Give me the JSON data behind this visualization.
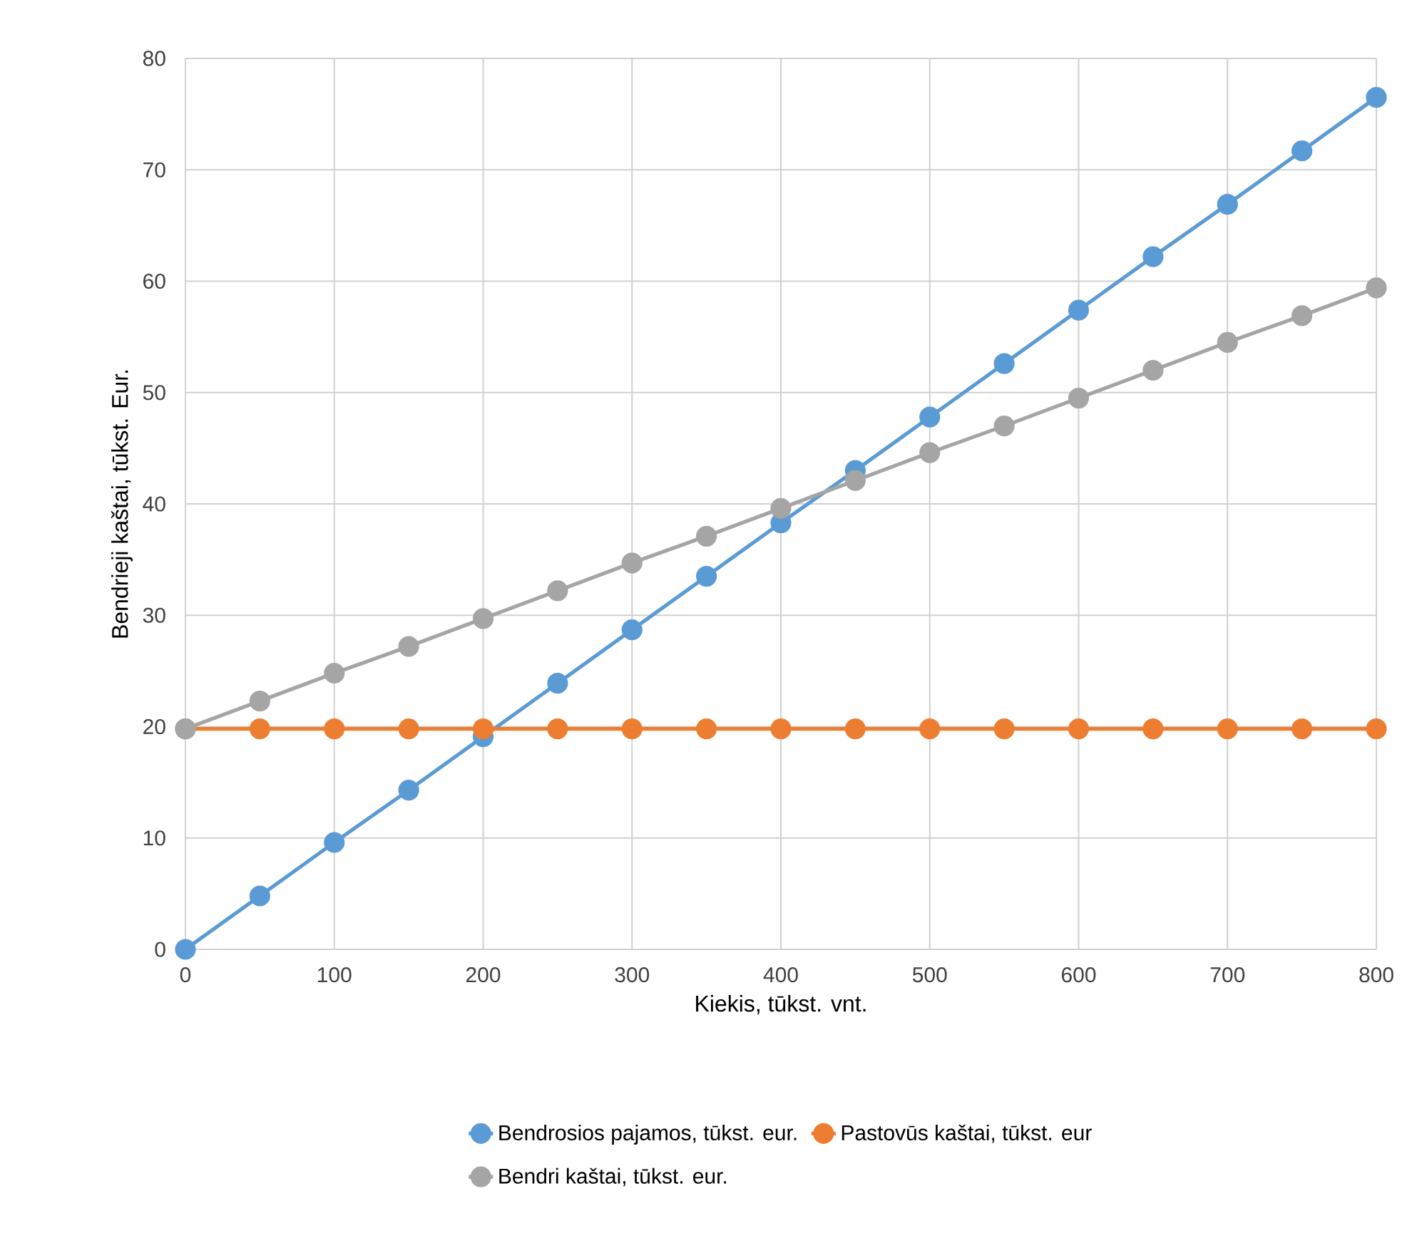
{
  "chart_data": {
    "type": "line",
    "xlabel": "Kiekis, tūkst. vnt.",
    "ylabel": "Bendrieji kaštai, tūkst. Eur.",
    "x": [
      0,
      50,
      100,
      150,
      200,
      250,
      300,
      350,
      400,
      450,
      500,
      550,
      600,
      650,
      700,
      750,
      800
    ],
    "series": [
      {
        "name": "Bendrosios pajamos, tūkst. eur.",
        "color": "#5b9bd5",
        "values": [
          0,
          4.8,
          9.6,
          14.3,
          19.1,
          23.9,
          28.7,
          33.5,
          38.3,
          43.0,
          47.8,
          52.6,
          57.4,
          62.2,
          66.9,
          71.7,
          76.5
        ]
      },
      {
        "name": "Pastovūs kaštai, tūkst. eur",
        "color": "#ed7d31",
        "values": [
          19.8,
          19.8,
          19.8,
          19.8,
          19.8,
          19.8,
          19.8,
          19.8,
          19.8,
          19.8,
          19.8,
          19.8,
          19.8,
          19.8,
          19.8,
          19.8,
          19.8
        ]
      },
      {
        "name": "Bendri kaštai, tūkst. eur.",
        "color": "#a5a5a5",
        "values": [
          19.8,
          22.3,
          24.8,
          27.2,
          29.7,
          32.2,
          34.7,
          37.1,
          39.6,
          42.1,
          44.6,
          47.0,
          49.5,
          52.0,
          54.5,
          56.9,
          59.4
        ]
      }
    ],
    "xlim": [
      0,
      800
    ],
    "xticks": [
      0,
      100,
      200,
      300,
      400,
      500,
      600,
      700,
      800
    ],
    "ylim": [
      0,
      80
    ],
    "yticks": [
      0,
      10,
      20,
      30,
      40,
      50,
      60,
      70,
      80
    ],
    "grid": true,
    "legend": "bottom",
    "marker": "circle",
    "line_style": "solid"
  }
}
